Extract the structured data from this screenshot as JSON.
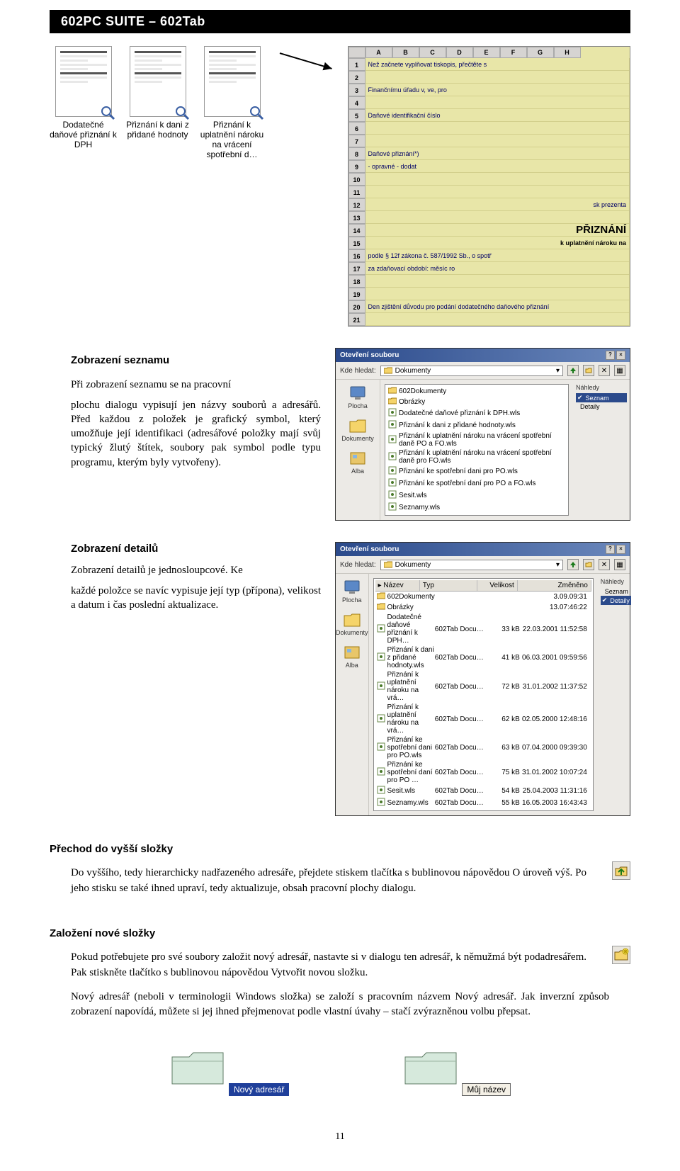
{
  "header": {
    "title": "602PC SUITE – 602Tab"
  },
  "icons": [
    {
      "label": "Dodatečné daňové přiznání k DPH"
    },
    {
      "label": "Přiznání k dani z přidané hodnoty"
    },
    {
      "label": "Přiznání k uplatnění nároku na vrácení spotřební d…"
    }
  ],
  "spreadsheet": {
    "cols": [
      "A",
      "B",
      "C",
      "D",
      "E",
      "F",
      "G",
      "H"
    ],
    "rows": [
      {
        "n": "1",
        "text": "Než začnete vyplňovat tiskopis, přečtěte s"
      },
      {
        "n": "2",
        "text": ""
      },
      {
        "n": "3",
        "text": "Finančnímu úřadu v, ve, pro"
      },
      {
        "n": "4",
        "text": ""
      },
      {
        "n": "5",
        "text": "Daňové identifikační číslo"
      },
      {
        "n": "6",
        "text": ""
      },
      {
        "n": "7",
        "text": ""
      },
      {
        "n": "8",
        "text": "Daňové přiznání*)"
      },
      {
        "n": "9",
        "text": " -    opravné    -    dodat"
      },
      {
        "n": "10",
        "text": ""
      },
      {
        "n": "11",
        "text": ""
      },
      {
        "n": "12",
        "text": "sk prezenta",
        "right": true
      },
      {
        "n": "13",
        "text": ""
      },
      {
        "n": "14",
        "text": "PŘIZNÁNÍ",
        "big": true
      },
      {
        "n": "15",
        "text": "k uplatnění nároku na",
        "bold": true
      },
      {
        "n": "16",
        "text": "podle § 12f zákona č. 587/1992 Sb., o spotř"
      },
      {
        "n": "17",
        "text": "za zdaňovací období:    měsíc        ro"
      },
      {
        "n": "18",
        "text": ""
      },
      {
        "n": "19",
        "text": ""
      },
      {
        "n": "20",
        "text": "Den zjištění důvodu pro podání dodatečného daňového přiznání"
      },
      {
        "n": "21",
        "text": ""
      }
    ]
  },
  "sec1": {
    "title": "Zobrazení seznamu",
    "line1": "Při zobrazení seznamu se na pracovní",
    "para": "plochu dialogu vypisují jen názvy souborů a adresářů. Před každou z položek je grafický symbol, který umožňuje její identifikaci (adresářové položky mají svůj typický žlutý štítek, soubory pak symbol podle typu programu, kterým byly vytvořeny)."
  },
  "sec2": {
    "title": "Zobrazení detailů",
    "line1": "Zobrazení detailů je jednosloupcové. Ke",
    "para": "každé položce se navíc vypisuje její typ (přípona), velikost a datum i čas poslední aktualizace."
  },
  "dialog": {
    "title": "Otevření souboru",
    "lookin_label": "Kde hledat:",
    "lookin_value": "Dokumenty",
    "sidebar": [
      {
        "label": "Plocha"
      },
      {
        "label": "Dokumenty"
      },
      {
        "label": "Alba"
      }
    ],
    "rightpane": {
      "heading": "Náhledy",
      "opts": [
        "Seznam",
        "Detaily"
      ],
      "selected": 0
    },
    "files_simple": [
      {
        "name": "602Dokumenty",
        "type": "folder"
      },
      {
        "name": "Obrázky",
        "type": "folder"
      },
      {
        "name": "Dodatečné daňové přiznání k DPH.wls"
      },
      {
        "name": "Přiznání k dani z přidané hodnoty.wls"
      },
      {
        "name": "Přiznání k uplatnění nároku na vrácení spotřební daně PO a FO.wls"
      },
      {
        "name": "Přiznání k uplatnění nároku na vrácení spotřební daně pro FO.wls"
      },
      {
        "name": "Přiznání ke spotřební dani pro PO.wls"
      },
      {
        "name": "Přiznání ke spotřební daní pro PO a FO.wls"
      },
      {
        "name": "Sesit.wls"
      },
      {
        "name": "Seznamy.wls"
      }
    ]
  },
  "dialog2": {
    "title": "Otevření souboru",
    "lookin_label": "Kde hledat:",
    "lookin_value": "Dokumenty",
    "rightpane": {
      "heading": "Náhledy",
      "opts": [
        "Seznam",
        "Detaily"
      ],
      "selected": 1
    },
    "cols": {
      "name": "Název",
      "typ": "Typ",
      "size": "Velikost",
      "date": "Změněno"
    },
    "files_detail": [
      {
        "name": "602Dokumenty",
        "typ": "",
        "size": "",
        "date": "3.09.09:31"
      },
      {
        "name": "Obrázky",
        "typ": "",
        "size": "",
        "date": "13.07:46:22"
      },
      {
        "name": "Dodatečné daňové přiznání k DPH…",
        "typ": "602Tab Docu…",
        "size": "33 kB",
        "date": "22.03.2001 11:52:58"
      },
      {
        "name": "Přiznání k dani z přidané hodnoty.wls",
        "typ": "602Tab Docu…",
        "size": "41 kB",
        "date": "06.03.2001 09:59:56"
      },
      {
        "name": "Přiznání k uplatnění nároku na vrá…",
        "typ": "602Tab Docu…",
        "size": "72 kB",
        "date": "31.01.2002 11:37:52"
      },
      {
        "name": "Přiznání k uplatnění nároku na vrá…",
        "typ": "602Tab Docu…",
        "size": "62 kB",
        "date": "02.05.2000 12:48:16"
      },
      {
        "name": "Přiznání ke spotřební dani pro PO.wls",
        "typ": "602Tab Docu…",
        "size": "63 kB",
        "date": "07.04.2000 09:39:30"
      },
      {
        "name": "Přiznání ke spotřební daní pro PO …",
        "typ": "602Tab Docu…",
        "size": "75 kB",
        "date": "31.01.2002 10:07:24"
      },
      {
        "name": "Sesit.wls",
        "typ": "602Tab Docu…",
        "size": "54 kB",
        "date": "25.04.2003 11:31:16"
      },
      {
        "name": "Seznamy.wls",
        "typ": "602Tab Docu…",
        "size": "55 kB",
        "date": "16.05.2003 16:43:43"
      }
    ]
  },
  "sec3": {
    "title": "Přechod do vyšší složky",
    "para": "Do vyššího, tedy hierarchicky nadřazeného adresáře, přejdete stiskem tlačítka s bublinovou nápovědou O úroveň výš. Po jeho stisku se také ihned upraví, tedy aktualizuje, obsah pracovní plochy dialogu."
  },
  "sec4": {
    "title": "Založení nové složky",
    "para1": "Pokud potřebujete pro své soubory založit nový adresář, nastavte si v dialogu ten adresář, k němužmá být podadresářem. Pak stiskněte tlačítko s bublinovou nápovědou Vytvořit novou složku.",
    "para2": "Nový adresář (neboli v terminologii Windows složka) se založí s pracovním názvem Nový adresář. Jak inverzní způsob zobrazení napovídá, můžete si jej ihned přejmenovat podle vlastní úvahy – stačí zvýrazněnou volbu přepsat."
  },
  "folders": {
    "left": "Nový adresář",
    "right": "Můj název"
  },
  "page_number": "11"
}
